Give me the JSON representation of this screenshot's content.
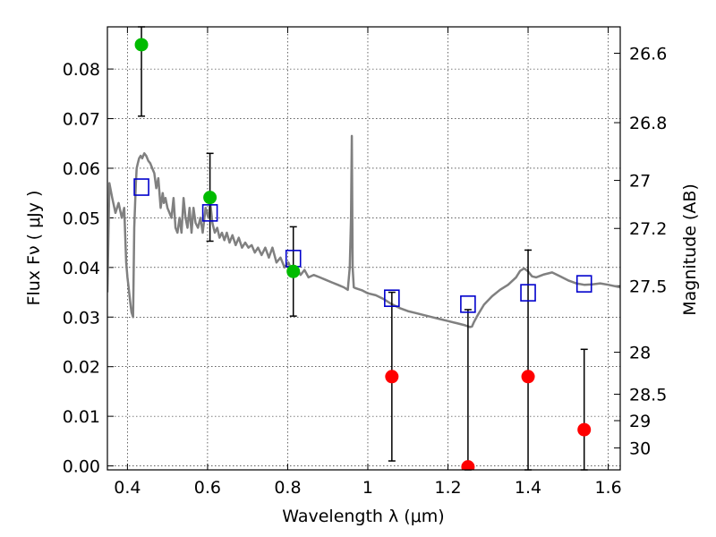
{
  "chart_data": {
    "type": "scatter",
    "title": "",
    "xlabel": "Wavelength  λ (μm)",
    "ylabel": "Flux  Fν  ( μJy )",
    "ylabel2": "Magnitude (AB)",
    "xlim": [
      0.35,
      1.63
    ],
    "ylim": [
      -0.0008,
      0.0885
    ],
    "grid": true,
    "x_ticks": [
      0.4,
      0.6,
      0.8,
      1.0,
      1.2,
      1.4,
      1.6
    ],
    "x_tick_labels": [
      "0.4",
      "0.6",
      "0.8",
      "1",
      "1.2",
      "1.4",
      "1.6"
    ],
    "y_ticks": [
      0.0,
      0.01,
      0.02,
      0.03,
      0.04,
      0.05,
      0.06,
      0.07,
      0.08
    ],
    "y_tick_labels": [
      "0.00",
      "0.01",
      "0.02",
      "0.03",
      "0.04",
      "0.05",
      "0.06",
      "0.07",
      "0.08"
    ],
    "magnitude_ticks": [
      26.6,
      26.8,
      27.0,
      27.2,
      27.5,
      28.0,
      28.5,
      29.0,
      30.0
    ],
    "magnitude_tick_labels": [
      "26.6",
      "26.8",
      "27",
      "27.2",
      "27.5",
      "28",
      "28.5",
      "29",
      "30"
    ],
    "colors": {
      "detection": "#00bb00",
      "upper_limit": "#ff0000",
      "model_photometry": "#0000cc",
      "template": "#808080",
      "error_bar": "#000000"
    },
    "series": [
      {
        "kind": "observed",
        "points": [
          {
            "x": 0.435,
            "y": 0.0849,
            "ylo": 0.0705,
            "yhi": 0.0885,
            "color": "detection"
          },
          {
            "x": 0.606,
            "y": 0.0541,
            "ylo": 0.0453,
            "yhi": 0.063,
            "color": "detection"
          },
          {
            "x": 0.814,
            "y": 0.0392,
            "ylo": 0.0302,
            "yhi": 0.0482,
            "color": "detection"
          },
          {
            "x": 1.06,
            "y": 0.018,
            "ylo": 0.001,
            "yhi": 0.035,
            "color": "upper_limit"
          },
          {
            "x": 1.25,
            "y": -0.0002,
            "ylo": -0.0008,
            "yhi": 0.0315,
            "color": "upper_limit"
          },
          {
            "x": 1.4,
            "y": 0.018,
            "ylo": -0.0008,
            "yhi": 0.0435,
            "color": "upper_limit"
          },
          {
            "x": 1.54,
            "y": 0.0073,
            "ylo": -0.0008,
            "yhi": 0.0235,
            "color": "upper_limit"
          }
        ]
      },
      {
        "kind": "model",
        "points": [
          {
            "x": 0.435,
            "y": 0.0562
          },
          {
            "x": 0.606,
            "y": 0.051
          },
          {
            "x": 0.814,
            "y": 0.0418
          },
          {
            "x": 1.06,
            "y": 0.0338
          },
          {
            "x": 1.25,
            "y": 0.0326
          },
          {
            "x": 1.4,
            "y": 0.0349
          },
          {
            "x": 1.54,
            "y": 0.0367
          }
        ]
      },
      {
        "kind": "template",
        "x": [
          0.35,
          0.355,
          0.362,
          0.37,
          0.378,
          0.386,
          0.392,
          0.397,
          0.4,
          0.403,
          0.407,
          0.41,
          0.414,
          0.417,
          0.421,
          0.423,
          0.426,
          0.429,
          0.433,
          0.437,
          0.442,
          0.447,
          0.452,
          0.457,
          0.462,
          0.467,
          0.472,
          0.477,
          0.483,
          0.488,
          0.491,
          0.495,
          0.5,
          0.505,
          0.51,
          0.515,
          0.52,
          0.525,
          0.53,
          0.535,
          0.54,
          0.545,
          0.55,
          0.555,
          0.56,
          0.565,
          0.57,
          0.576,
          0.582,
          0.588,
          0.595,
          0.602,
          0.607,
          0.612,
          0.618,
          0.624,
          0.63,
          0.636,
          0.642,
          0.648,
          0.655,
          0.662,
          0.67,
          0.678,
          0.686,
          0.694,
          0.702,
          0.71,
          0.718,
          0.726,
          0.735,
          0.744,
          0.753,
          0.762,
          0.772,
          0.782,
          0.792,
          0.802,
          0.812,
          0.822,
          0.832,
          0.842,
          0.852,
          0.865,
          0.88,
          0.895,
          0.91,
          0.925,
          0.94,
          0.95,
          0.955,
          0.958,
          0.96,
          0.962,
          0.965,
          0.97,
          0.985,
          1.0,
          1.02,
          1.04,
          1.06,
          1.08,
          1.1,
          1.12,
          1.14,
          1.16,
          1.18,
          1.2,
          1.22,
          1.24,
          1.255,
          1.26,
          1.265,
          1.275,
          1.29,
          1.31,
          1.33,
          1.35,
          1.37,
          1.38,
          1.39,
          1.4,
          1.41,
          1.42,
          1.44,
          1.46,
          1.48,
          1.5,
          1.52,
          1.54,
          1.56,
          1.58,
          1.6,
          1.63
        ],
        "y": [
          0.035,
          0.057,
          0.054,
          0.051,
          0.053,
          0.05,
          0.052,
          0.041,
          0.038,
          0.036,
          0.033,
          0.031,
          0.03,
          0.048,
          0.057,
          0.06,
          0.061,
          0.062,
          0.0625,
          0.062,
          0.063,
          0.0625,
          0.0615,
          0.061,
          0.06,
          0.059,
          0.056,
          0.058,
          0.052,
          0.055,
          0.053,
          0.054,
          0.052,
          0.051,
          0.05,
          0.054,
          0.048,
          0.047,
          0.05,
          0.047,
          0.054,
          0.05,
          0.048,
          0.052,
          0.047,
          0.052,
          0.049,
          0.048,
          0.05,
          0.047,
          0.052,
          0.05,
          0.053,
          0.049,
          0.047,
          0.048,
          0.046,
          0.047,
          0.0455,
          0.047,
          0.045,
          0.0465,
          0.0445,
          0.046,
          0.044,
          0.045,
          0.044,
          0.0445,
          0.043,
          0.044,
          0.0425,
          0.044,
          0.042,
          0.044,
          0.041,
          0.042,
          0.04,
          0.041,
          0.039,
          0.04,
          0.0385,
          0.0395,
          0.038,
          0.0385,
          0.038,
          0.0375,
          0.037,
          0.0365,
          0.036,
          0.0355,
          0.04,
          0.05,
          0.0665,
          0.04,
          0.036,
          0.0358,
          0.0354,
          0.0348,
          0.0344,
          0.0336,
          0.0326,
          0.0318,
          0.0312,
          0.0308,
          0.0304,
          0.03,
          0.0296,
          0.0292,
          0.0288,
          0.0284,
          0.028,
          0.0281,
          0.029,
          0.0305,
          0.0325,
          0.0342,
          0.0355,
          0.0365,
          0.038,
          0.0393,
          0.0398,
          0.0392,
          0.0382,
          0.038,
          0.0386,
          0.039,
          0.0382,
          0.0374,
          0.0368,
          0.0365,
          0.0366,
          0.0368,
          0.0365,
          0.036
        ]
      }
    ]
  }
}
